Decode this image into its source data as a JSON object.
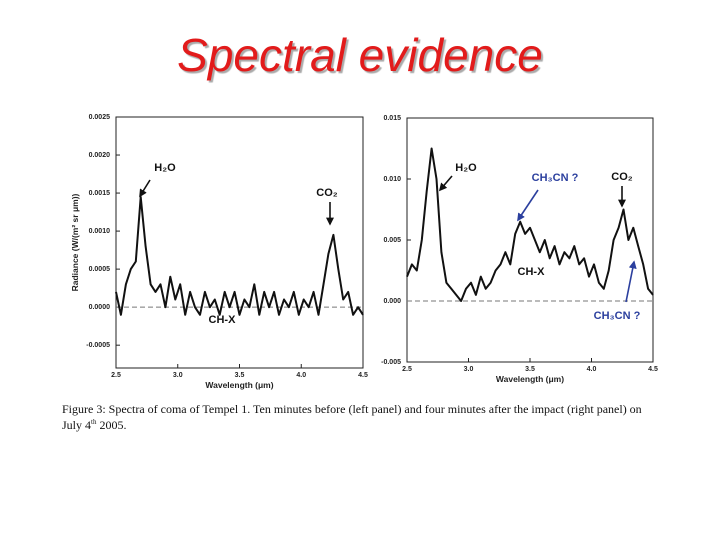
{
  "slide_title": "Spectral evidence",
  "caption": {
    "text": "Figure 3: Spectra of coma of Tempel 1.  Ten minutes before (left panel) and four minutes after the impact (right panel) on July 4",
    "superscript": "th",
    "end": "2005."
  },
  "chart_data": [
    {
      "type": "line",
      "color": "#111111",
      "x_label": "Wavelength (μm)",
      "y_label": "Radiance (W/(m² sr μm))",
      "xlim": [
        2.5,
        4.5
      ],
      "xticks": [
        2.5,
        {
          "value": 3,
          "label": "3.0"
        },
        3.5,
        {
          "value": 4,
          "label": "4.0"
        },
        4.5
      ],
      "ylim": [
        -0.0008,
        0.0025
      ],
      "yticks": [
        0.0025,
        {
          "value": 0.002,
          "label": "0.0020"
        },
        0.0015,
        {
          "value": 0.001,
          "label": "0.0010"
        },
        0.0005,
        {
          "value": 0,
          "label": "0.0000"
        },
        -0.0005
      ],
      "reference_line": 0,
      "annotations": [
        {
          "text": "H₂O",
          "color": "#111111"
        },
        {
          "text": "CO₂",
          "color": "#111111"
        },
        {
          "text": "CH-X",
          "color": "#111111"
        }
      ],
      "x": [
        2.5,
        2.54,
        2.58,
        2.62,
        2.66,
        2.7,
        2.74,
        2.78,
        2.82,
        2.86,
        2.9,
        2.94,
        2.98,
        3.02,
        3.06,
        3.1,
        3.14,
        3.18,
        3.22,
        3.26,
        3.3,
        3.34,
        3.38,
        3.42,
        3.46,
        3.5,
        3.54,
        3.58,
        3.62,
        3.66,
        3.7,
        3.74,
        3.78,
        3.82,
        3.86,
        3.9,
        3.94,
        3.98,
        4.02,
        4.06,
        4.1,
        4.14,
        4.18,
        4.22,
        4.26,
        4.3,
        4.34,
        4.38,
        4.42,
        4.46,
        4.5
      ],
      "values": [
        0.0002,
        -0.0001,
        0.0003,
        0.0005,
        0.0006,
        0.00145,
        0.0008,
        0.0003,
        0.0002,
        0.0003,
        0,
        0.0004,
        0.0001,
        0.0003,
        -0.0001,
        0.0002,
        0,
        -0.0001,
        0.0002,
        0,
        0.0001,
        -0.0001,
        0.0002,
        0,
        0.0002,
        -0.0001,
        0.0001,
        0,
        0.0003,
        -0.0001,
        0.0002,
        0,
        0.0002,
        -0.0001,
        0.0001,
        0,
        0.0002,
        -0.0001,
        0.0001,
        0,
        0.0002,
        -0.0001,
        0.0003,
        0.0007,
        0.00095,
        0.0005,
        0.0001,
        0.0002,
        -0.0001,
        0,
        -0.0001
      ]
    },
    {
      "type": "line",
      "color": "#111111",
      "x_label": "Wavelength (μm)",
      "xlim": [
        2.5,
        4.5
      ],
      "xticks": [
        2.5,
        {
          "value": 3,
          "label": "3.0"
        },
        3.5,
        {
          "value": 4,
          "label": "4.0"
        },
        4.5
      ],
      "ylim": [
        -0.005,
        0.015
      ],
      "yticks": [
        0.015,
        {
          "value": 0.01,
          "label": "0.010"
        },
        0.005,
        {
          "value": 0,
          "label": "0.000"
        },
        -0.005
      ],
      "reference_line": 0,
      "annotations": [
        {
          "text": "H₂O",
          "color": "#111111"
        },
        {
          "text": "CH₃CN ?",
          "color": "#2b3f9e"
        },
        {
          "text": "CO₂",
          "color": "#111111"
        },
        {
          "text": "CH-X",
          "color": "#111111"
        },
        {
          "text": "CH₃CN ?",
          "color": "#2b3f9e"
        }
      ],
      "x": [
        2.5,
        2.54,
        2.58,
        2.62,
        2.66,
        2.7,
        2.74,
        2.78,
        2.82,
        2.86,
        2.9,
        2.94,
        2.98,
        3.02,
        3.06,
        3.1,
        3.14,
        3.18,
        3.22,
        3.26,
        3.3,
        3.34,
        3.38,
        3.42,
        3.46,
        3.5,
        3.54,
        3.58,
        3.62,
        3.66,
        3.7,
        3.74,
        3.78,
        3.82,
        3.86,
        3.9,
        3.94,
        3.98,
        4.02,
        4.06,
        4.1,
        4.14,
        4.18,
        4.22,
        4.26,
        4.3,
        4.34,
        4.38,
        4.42,
        4.46,
        4.5
      ],
      "values": [
        0.002,
        0.003,
        0.0025,
        0.005,
        0.009,
        0.0125,
        0.01,
        0.004,
        0.0015,
        0.001,
        0.0005,
        0,
        0.001,
        0.0015,
        0.0005,
        0.002,
        0.001,
        0.0015,
        0.0025,
        0.003,
        0.004,
        0.003,
        0.0055,
        0.0065,
        0.0055,
        0.006,
        0.005,
        0.004,
        0.005,
        0.0035,
        0.0045,
        0.003,
        0.004,
        0.0035,
        0.0045,
        0.003,
        0.0035,
        0.002,
        0.003,
        0.0015,
        0.001,
        0.0025,
        0.005,
        0.006,
        0.0075,
        0.005,
        0.006,
        0.0045,
        0.003,
        0.001,
        0.0005
      ]
    }
  ]
}
